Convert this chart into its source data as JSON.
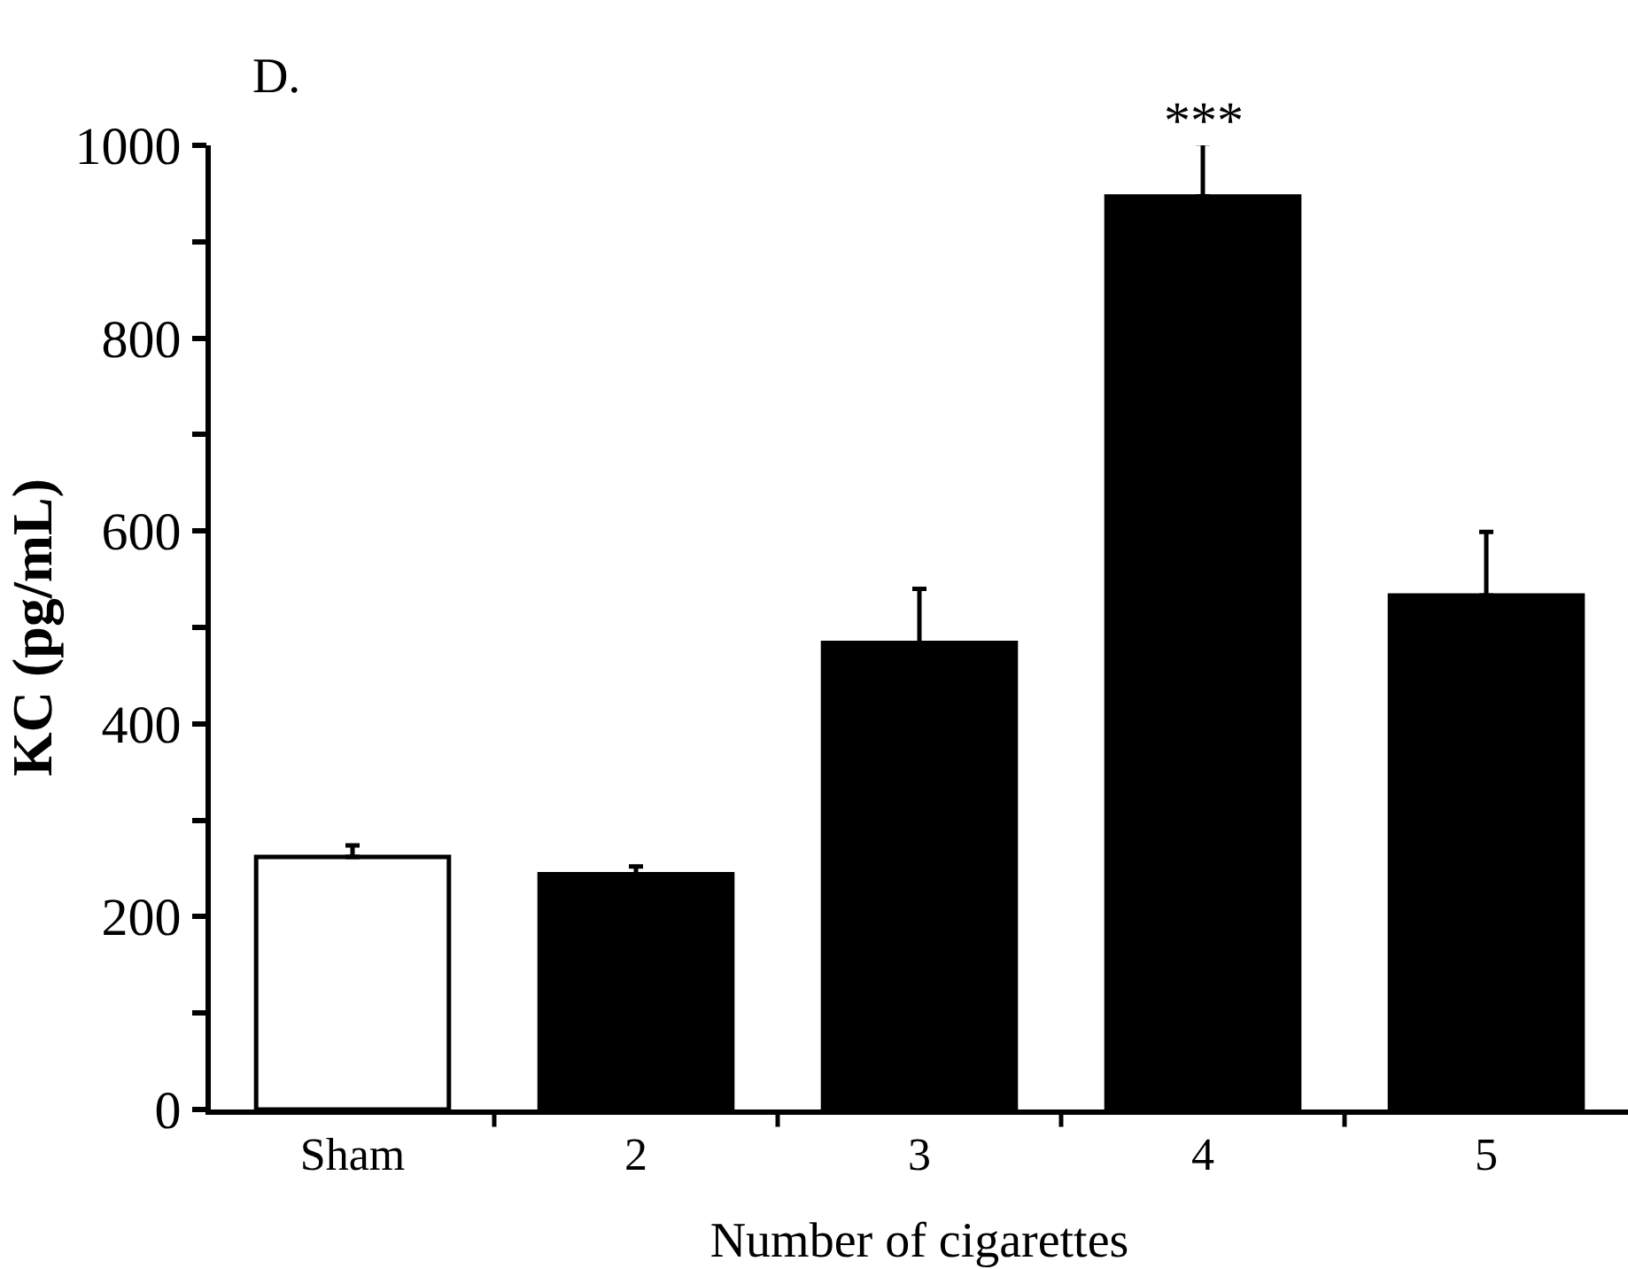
{
  "chart_data": {
    "type": "bar",
    "title": "D.",
    "xlabel": "Number of cigarettes",
    "ylabel": "KC (pg/mL)",
    "categories": [
      "Sham",
      "2",
      "3",
      "4",
      "5"
    ],
    "values": [
      262,
      244,
      484,
      947,
      533
    ],
    "colors": [
      "#ffffff",
      "#000000",
      "#000000",
      "#000000",
      "#000000"
    ],
    "errors": [
      12,
      8,
      56,
      55,
      66
    ],
    "ylim": [
      0,
      1000
    ],
    "yticks": [
      0,
      {
        "value": 100,
        "label": null
      },
      200,
      {
        "value": 300,
        "label": null
      },
      400,
      {
        "value": 500,
        "label": null
      },
      600,
      {
        "value": 700,
        "label": null
      },
      800,
      {
        "value": 900,
        "label": null
      },
      1000
    ],
    "annotations": [
      {
        "text": "***",
        "x": "4",
        "y": 1002
      }
    ]
  }
}
